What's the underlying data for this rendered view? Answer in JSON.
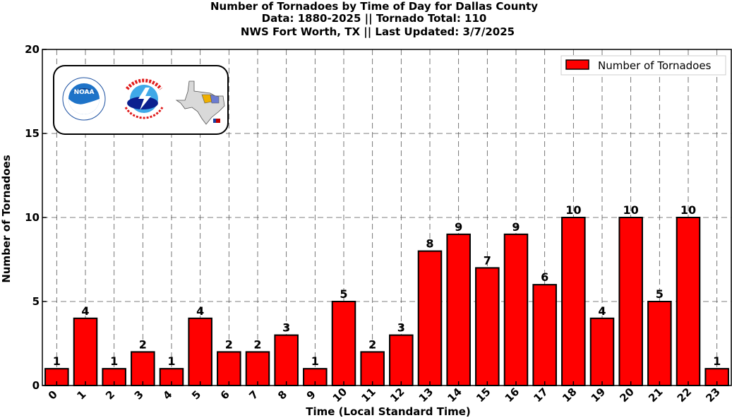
{
  "chart_data": {
    "type": "bar",
    "title_lines": [
      "Number of Tornadoes by Time of Day for Dallas County",
      "Data: 1880-2025 || Tornado Total: 110",
      "NWS Fort Worth, TX || Last Updated: 3/7/2025"
    ],
    "xlabel": "Time (Local Standard Time)",
    "ylabel": "Number of Tornadoes",
    "categories": [
      "0",
      "1",
      "2",
      "3",
      "4",
      "5",
      "6",
      "7",
      "8",
      "9",
      "10",
      "11",
      "12",
      "13",
      "14",
      "15",
      "16",
      "17",
      "18",
      "19",
      "20",
      "21",
      "22",
      "23"
    ],
    "series": [
      {
        "name": "Number of Tornadoes",
        "values": [
          1,
          4,
          1,
          2,
          1,
          4,
          2,
          2,
          3,
          1,
          5,
          2,
          3,
          8,
          9,
          7,
          9,
          6,
          10,
          4,
          10,
          5,
          10,
          1
        ],
        "color": "#ff0000"
      }
    ],
    "ylim": [
      0,
      20
    ],
    "yticks": [
      "0",
      "5",
      "10",
      "15",
      "20"
    ],
    "grid": true,
    "legend_position": "top-right"
  },
  "logo": {
    "noaa_text": "NOAA",
    "nws_text": "NATIONAL WEATHER SERVICE"
  }
}
